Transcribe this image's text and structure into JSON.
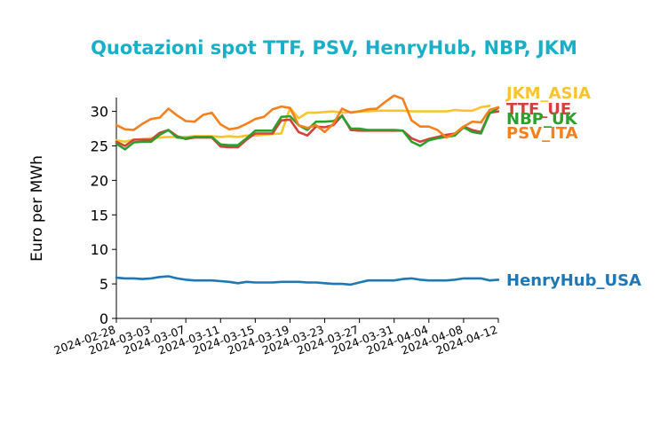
{
  "chart_data": {
    "type": "line",
    "title": "Quotazioni spot TTF, PSV, HenryHub, NBP, JKM",
    "ylabel": "Euro per MWh",
    "xlabel": "",
    "ylim": [
      0,
      32
    ],
    "yticks": [
      0,
      5,
      10,
      15,
      20,
      25,
      30
    ],
    "xlim": [
      "2024-02-28",
      "2024-04-12"
    ],
    "xticks": [
      "2024-02-28",
      "2024-03-03",
      "2024-03-07",
      "2024-03-11",
      "2024-03-15",
      "2024-03-19",
      "2024-03-23",
      "2024-03-27",
      "2024-03-31",
      "2024-04-04",
      "2024-04-08",
      "2024-04-12"
    ],
    "grid": false,
    "legend": "end-of-line labels",
    "dates": [
      "2024-02-28",
      "2024-02-29",
      "2024-03-01",
      "2024-03-02",
      "2024-03-03",
      "2024-03-04",
      "2024-03-05",
      "2024-03-06",
      "2024-03-07",
      "2024-03-08",
      "2024-03-09",
      "2024-03-10",
      "2024-03-11",
      "2024-03-12",
      "2024-03-13",
      "2024-03-14",
      "2024-03-15",
      "2024-03-16",
      "2024-03-17",
      "2024-03-18",
      "2024-03-19",
      "2024-03-20",
      "2024-03-21",
      "2024-03-22",
      "2024-03-23",
      "2024-03-24",
      "2024-03-25",
      "2024-03-26",
      "2024-03-27",
      "2024-03-28",
      "2024-03-29",
      "2024-03-30",
      "2024-03-31",
      "2024-04-01",
      "2024-04-02",
      "2024-04-03",
      "2024-04-04",
      "2024-04-05",
      "2024-04-06",
      "2024-04-07",
      "2024-04-08",
      "2024-04-09",
      "2024-04-10",
      "2024-04-11",
      "2024-04-12"
    ],
    "series": [
      {
        "name": "JKM_ASIA",
        "color": "#fcc42c",
        "values": [
          25.8,
          25.6,
          25.9,
          26.0,
          26.1,
          26.2,
          26.3,
          26.3,
          26.3,
          26.4,
          26.4,
          26.4,
          26.3,
          26.4,
          26.3,
          26.5,
          26.5,
          26.6,
          26.7,
          26.8,
          30.5,
          29.0,
          29.8,
          29.8,
          29.9,
          30.0,
          29.8,
          29.9,
          30.0,
          30.0,
          30.1,
          30.1,
          30.1,
          30.1,
          30.0,
          30.0,
          30.0,
          30.0,
          30.0,
          30.2,
          30.1,
          30.1,
          30.6,
          30.8,
          null
        ]
      },
      {
        "name": "TTF_UE",
        "color": "#d6403a",
        "values": [
          25.6,
          25.0,
          25.9,
          25.9,
          25.9,
          26.9,
          27.3,
          26.4,
          26.0,
          26.2,
          26.2,
          26.2,
          24.9,
          24.8,
          24.8,
          25.9,
          26.8,
          26.8,
          26.8,
          28.7,
          28.8,
          27.0,
          26.5,
          27.8,
          27.7,
          28.0,
          29.4,
          27.3,
          27.2,
          27.2,
          27.2,
          27.2,
          27.2,
          27.2,
          26.1,
          25.6,
          26.0,
          26.3,
          26.6,
          26.8,
          27.8,
          27.3,
          27.0,
          29.8,
          30.0
        ]
      },
      {
        "name": "NBP_UK",
        "color": "#2ca02c",
        "values": [
          25.3,
          24.5,
          25.5,
          25.6,
          25.6,
          26.6,
          27.3,
          26.2,
          26.1,
          26.3,
          26.3,
          26.3,
          25.2,
          25.1,
          25.1,
          26.1,
          27.2,
          27.2,
          27.2,
          29.2,
          29.3,
          28.0,
          27.3,
          28.5,
          28.5,
          28.6,
          29.3,
          27.5,
          27.5,
          27.3,
          27.3,
          27.3,
          27.3,
          27.2,
          25.6,
          25.0,
          25.8,
          26.1,
          26.3,
          26.5,
          27.7,
          27.0,
          26.8,
          29.7,
          30.5
        ]
      },
      {
        "name": "PSV_ITA",
        "color": "#f5801d",
        "values": [
          28.0,
          27.4,
          27.3,
          28.2,
          28.9,
          29.1,
          30.4,
          29.4,
          28.6,
          28.5,
          29.5,
          29.8,
          28.1,
          27.4,
          27.6,
          28.2,
          28.9,
          29.2,
          30.3,
          30.7,
          30.5,
          28.0,
          27.6,
          28.0,
          27.0,
          28.2,
          30.4,
          29.8,
          30.0,
          30.3,
          30.4,
          31.4,
          32.3,
          31.8,
          28.7,
          27.8,
          27.8,
          27.3,
          26.2,
          26.8,
          27.8,
          28.5,
          28.4,
          30.2,
          30.6
        ]
      },
      {
        "name": "HenryHub_USA",
        "color": "#1f77b4",
        "values": [
          5.9,
          5.8,
          5.8,
          5.7,
          5.8,
          6.0,
          6.1,
          5.8,
          5.6,
          5.5,
          5.5,
          5.5,
          5.4,
          5.3,
          5.1,
          5.3,
          5.2,
          5.2,
          5.2,
          5.3,
          5.3,
          5.3,
          5.2,
          5.2,
          5.1,
          5.0,
          5.0,
          4.9,
          5.2,
          5.5,
          5.5,
          5.5,
          5.5,
          5.7,
          5.8,
          5.6,
          5.5,
          5.5,
          5.5,
          5.6,
          5.8,
          5.8,
          5.8,
          5.5,
          5.6
        ]
      }
    ]
  }
}
